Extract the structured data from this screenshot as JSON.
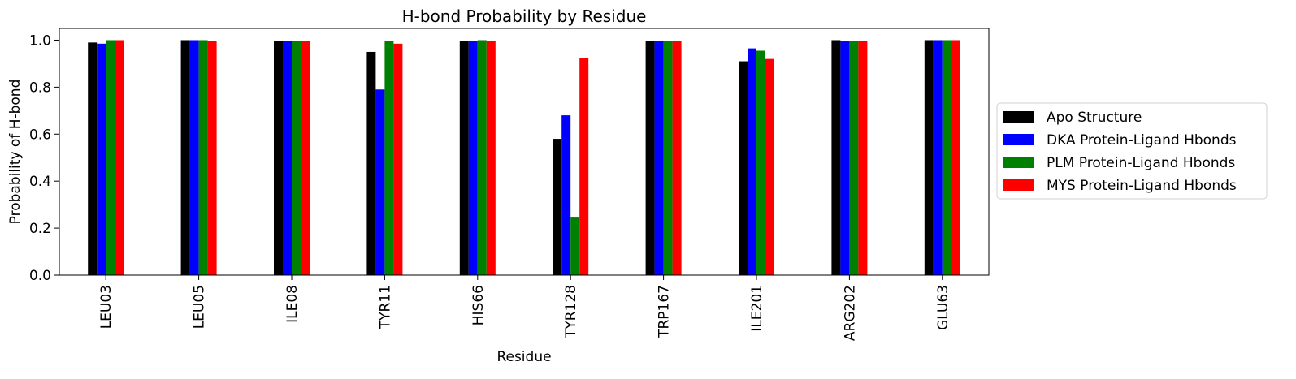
{
  "chart_data": {
    "type": "bar",
    "title": "H-bond Probability by Residue",
    "xlabel": "Residue",
    "ylabel": "Probability of H-bond",
    "ylim": [
      0,
      1.05
    ],
    "yticks": [
      "0.0",
      "0.2",
      "0.4",
      "0.6",
      "0.8",
      "1.0"
    ],
    "categories": [
      "LEU03",
      "LEU05",
      "ILE08",
      "TYR11",
      "HIS66",
      "TYR128",
      "TRP167",
      "ILE201",
      "ARG202",
      "GLU63"
    ],
    "series": [
      {
        "name": "Apo Structure",
        "color": "#000000",
        "values": [
          0.99,
          1.0,
          0.998,
          0.95,
          0.998,
          0.58,
          0.998,
          0.91,
          1.0,
          1.0
        ]
      },
      {
        "name": "DKA Protein-Ligand Hbonds",
        "color": "#0000ff",
        "values": [
          0.985,
          1.0,
          0.998,
          0.79,
          0.998,
          0.68,
          0.998,
          0.965,
          0.998,
          1.0
        ]
      },
      {
        "name": "PLM Protein-Ligand Hbonds",
        "color": "#008000",
        "values": [
          1.0,
          1.0,
          0.998,
          0.995,
          1.0,
          0.245,
          0.998,
          0.955,
          0.998,
          1.0
        ]
      },
      {
        "name": "MYS Protein-Ligand Hbonds",
        "color": "#ff0000",
        "values": [
          1.0,
          0.998,
          0.998,
          0.985,
          0.998,
          0.925,
          0.998,
          0.92,
          0.995,
          1.0
        ]
      }
    ],
    "legend_position": "right",
    "grid": false
  }
}
